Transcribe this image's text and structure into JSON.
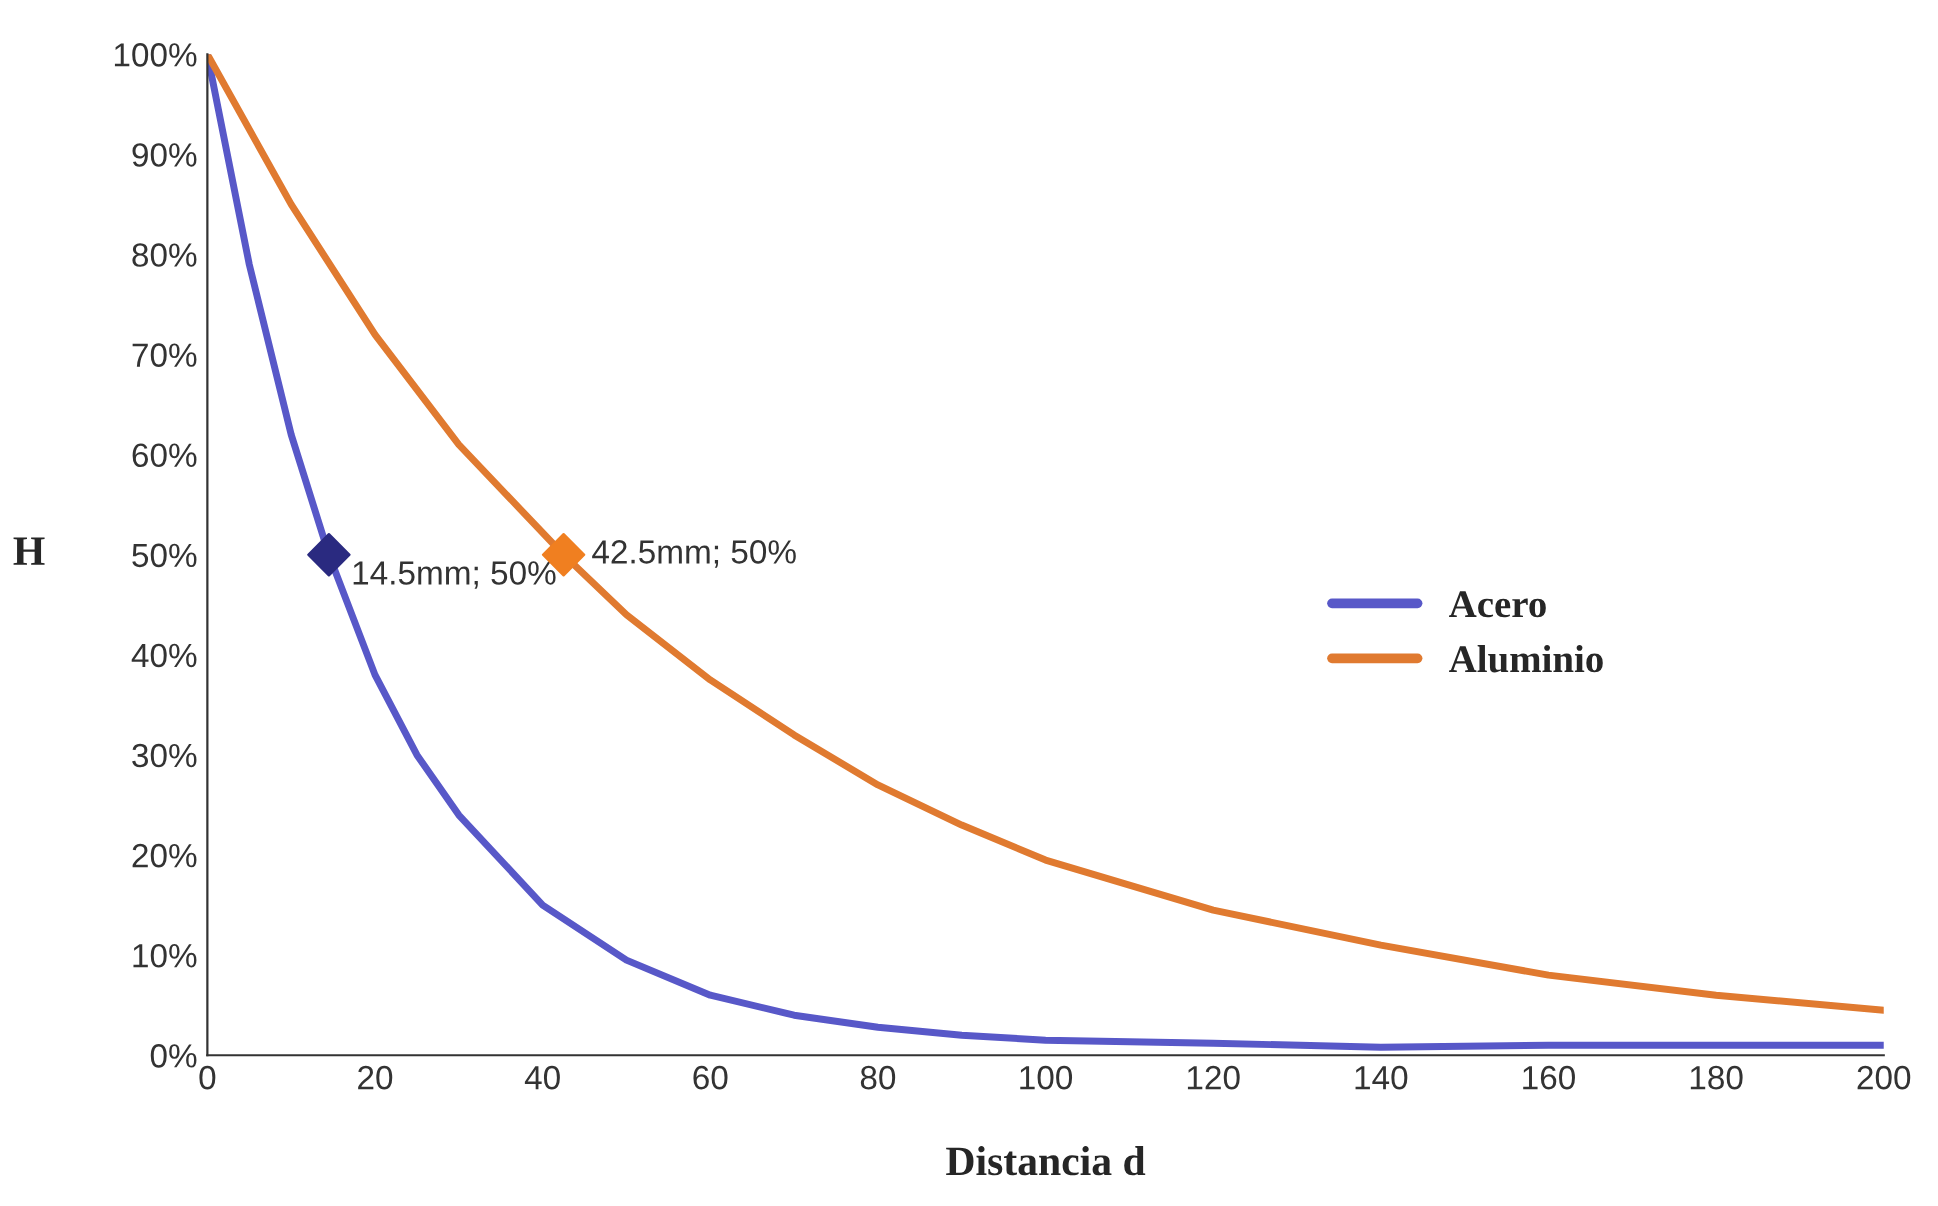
{
  "chart_data": {
    "type": "line",
    "xlabel": "Distancia d",
    "ylabel": "H",
    "xlim": [
      0,
      200
    ],
    "xticks": [
      0,
      20,
      40,
      60,
      80,
      100,
      120,
      140,
      160,
      180,
      200
    ],
    "ylim": [
      0,
      100
    ],
    "yticks": [
      {
        "value": 0,
        "label": "0%"
      },
      {
        "value": 10,
        "label": "10%"
      },
      {
        "value": 20,
        "label": "20%"
      },
      {
        "value": 30,
        "label": "30%"
      },
      {
        "value": 40,
        "label": "40%"
      },
      {
        "value": 50,
        "label": "50%"
      },
      {
        "value": 60,
        "label": "60%"
      },
      {
        "value": 70,
        "label": "70%"
      },
      {
        "value": 80,
        "label": "80%"
      },
      {
        "value": 90,
        "label": "90%"
      },
      {
        "value": 100,
        "label": "100%"
      }
    ],
    "grid": false,
    "legend": "right",
    "line_style": "solid",
    "series": [
      {
        "name": "Acero",
        "color": "#5858c8",
        "x": [
          0,
          5,
          10,
          14.5,
          20,
          25,
          30,
          40,
          50,
          60,
          70,
          80,
          90,
          100,
          120,
          140,
          160,
          180,
          200
        ],
        "values": [
          100,
          79,
          62,
          50,
          38,
          30,
          24,
          15,
          9.5,
          6,
          4,
          2.8,
          2,
          1.5,
          1.2,
          0.8,
          1,
          1,
          1
        ]
      },
      {
        "name": "Aluminio",
        "color": "#e07a30",
        "x": [
          0,
          10,
          20,
          30,
          42.5,
          50,
          60,
          70,
          80,
          90,
          100,
          110,
          120,
          140,
          160,
          180,
          200
        ],
        "values": [
          100,
          85,
          72,
          61,
          50,
          44,
          37.5,
          32,
          27,
          23,
          19.5,
          17,
          14.5,
          11,
          8,
          6,
          4.5
        ]
      },
      {
        "type": "scatter",
        "marker": "diamond",
        "color": "#2a2a80",
        "x": [
          14.5
        ],
        "values": [
          50
        ]
      },
      {
        "type": "scatter",
        "marker": "diamond",
        "color": "#f07f20",
        "x": [
          42.5
        ],
        "values": [
          50
        ]
      }
    ],
    "annotations": [
      {
        "text": "14.5mm; 50%",
        "x": 14.5,
        "y": 50
      },
      {
        "text": "42.5mm; 50%",
        "x": 42.5,
        "y": 50
      }
    ]
  }
}
